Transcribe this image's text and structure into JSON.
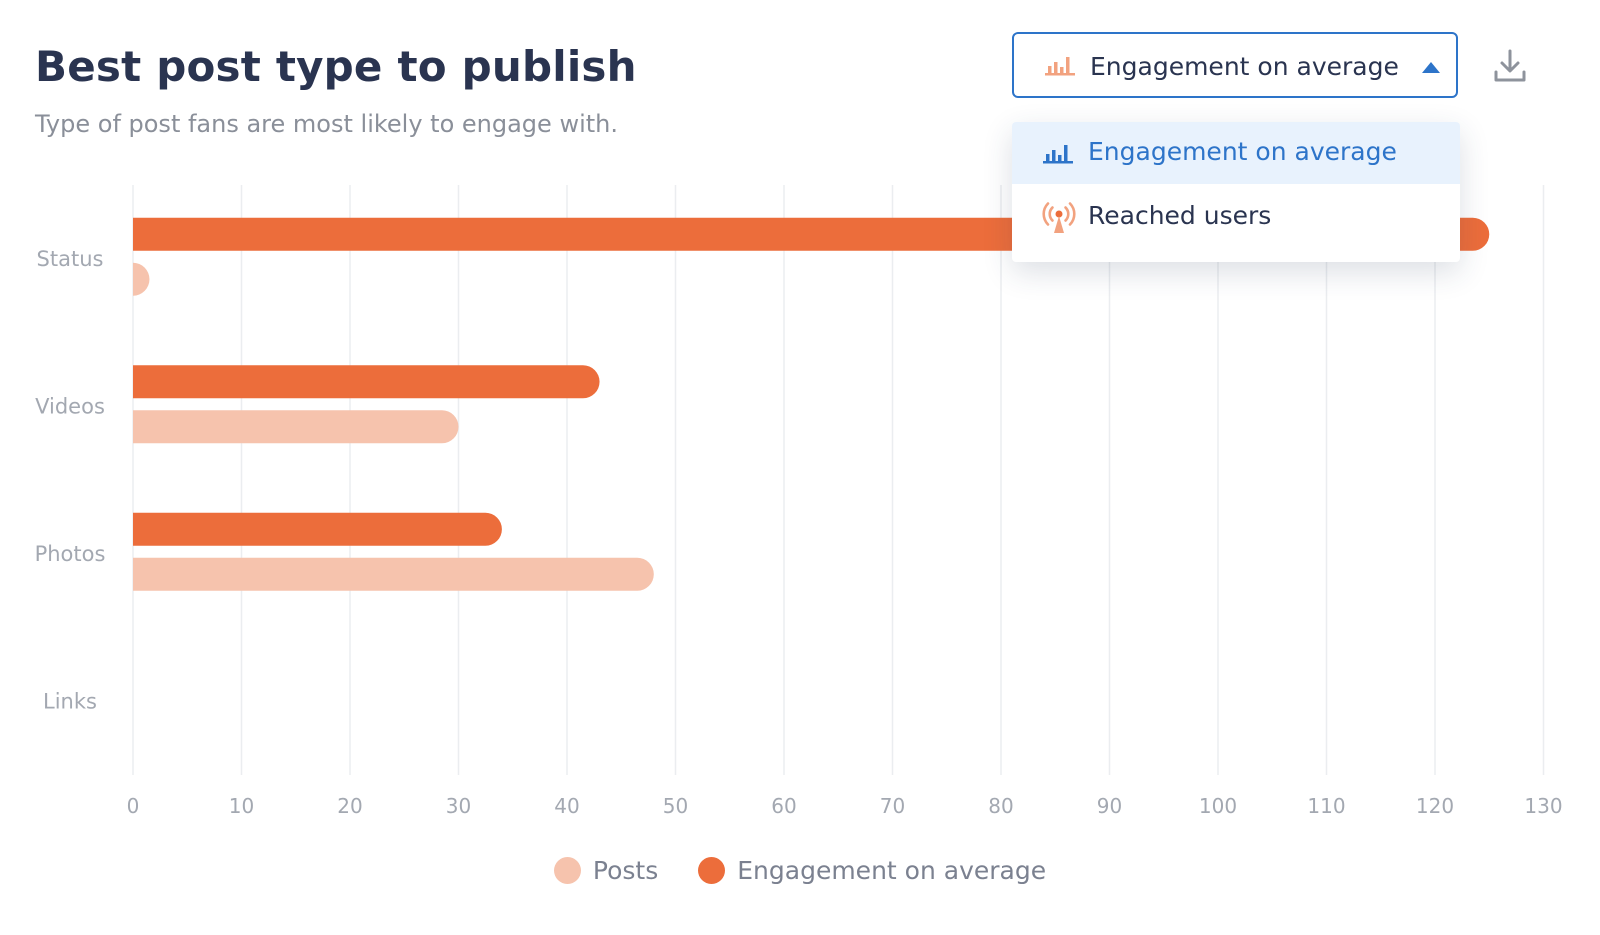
{
  "title": "Best post type to publish",
  "subtitle": "Type of post fans are most likely to engage with.",
  "metric_select": {
    "selected_label": "Engagement on average",
    "options": [
      {
        "label": "Engagement on average",
        "icon": "bar-chart-icon",
        "active": true
      },
      {
        "label": "Reached users",
        "icon": "broadcast-icon",
        "active": false
      }
    ]
  },
  "colors": {
    "posts": "#f6c3ad",
    "engagement": "#ec6d3b",
    "accent": "#2d74c9",
    "grid": "#ebedf0"
  },
  "chart_data": {
    "type": "bar",
    "orientation": "horizontal",
    "categories": [
      "Status",
      "Videos",
      "Photos",
      "Links"
    ],
    "series": [
      {
        "name": "Engagement on average",
        "values": [
          125,
          43,
          34,
          0
        ]
      },
      {
        "name": "Posts",
        "values": [
          1,
          30,
          48,
          0
        ]
      }
    ],
    "xticks": [
      0,
      10,
      20,
      30,
      40,
      50,
      60,
      70,
      80,
      90,
      100,
      110,
      120,
      130
    ],
    "xlim": [
      0,
      130
    ],
    "grid": true,
    "legend": "bottom-center",
    "legend_entries": [
      "Posts",
      "Engagement on average"
    ]
  }
}
